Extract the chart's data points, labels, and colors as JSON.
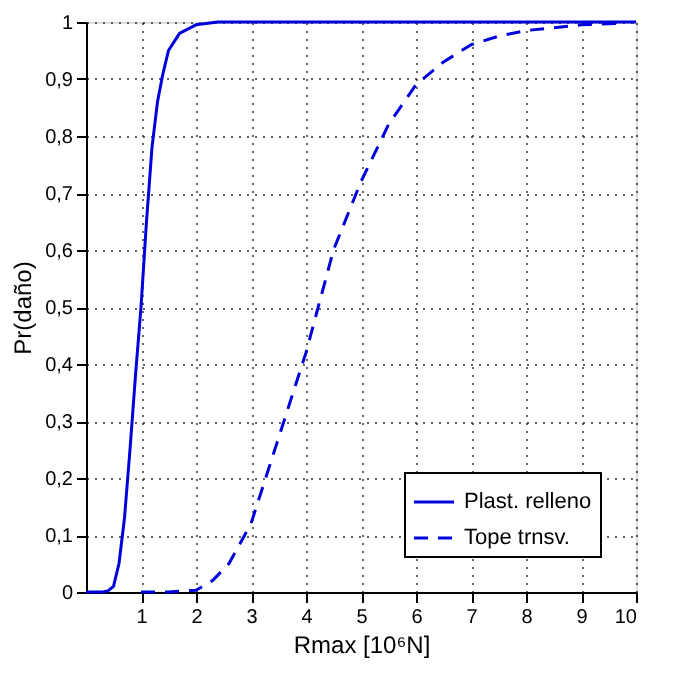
{
  "chart_data": {
    "type": "line",
    "xlabel": "Rmax [10⁶N]",
    "ylabel": "Pr(daño)",
    "x": [
      0,
      0.3,
      0.4,
      0.5,
      0.6,
      0.7,
      0.8,
      0.9,
      1.0,
      1.1,
      1.2,
      1.3,
      1.4,
      1.5,
      1.7,
      2.0,
      2.4,
      10
    ],
    "series": [
      {
        "name": "Plast. relleno",
        "color": "#0000dd",
        "line_style": "solid",
        "values": [
          0,
          0,
          0.002,
          0.01,
          0.05,
          0.13,
          0.25,
          0.38,
          0.5,
          0.65,
          0.78,
          0.86,
          0.91,
          0.95,
          0.98,
          0.995,
          1,
          1
        ]
      },
      {
        "name": "Tope trnsv.",
        "color": "#0000dd",
        "line_style": "dashed",
        "x": [
          1.0,
          1.5,
          2.0,
          2.3,
          2.6,
          3.0,
          3.5,
          4.0,
          4.5,
          5.0,
          5.5,
          6.0,
          6.5,
          7.0,
          7.5,
          8.0,
          9.0,
          9.8
        ],
        "values": [
          0,
          0,
          0.003,
          0.02,
          0.05,
          0.12,
          0.27,
          0.42,
          0.6,
          0.72,
          0.82,
          0.89,
          0.93,
          0.96,
          0.975,
          0.985,
          0.995,
          0.998
        ]
      }
    ],
    "xlim": [
      0,
      10
    ],
    "xticks": [
      1,
      2,
      3,
      4,
      5,
      6,
      7,
      8,
      9,
      10
    ],
    "ylim": [
      0,
      1
    ],
    "yticks": [
      0,
      {
        "value": 0.1,
        "label": "0,1"
      },
      {
        "value": 0.2,
        "label": "0,2"
      },
      {
        "value": 0.3,
        "label": "0,3"
      },
      {
        "value": 0.4,
        "label": "0,4"
      },
      {
        "value": 0.5,
        "label": "0,5"
      },
      {
        "value": 0.6,
        "label": "0,6"
      },
      {
        "value": 0.7,
        "label": "0,7"
      },
      {
        "value": 0.8,
        "label": "0,8"
      },
      {
        "value": 0.9,
        "label": "0,9"
      },
      1
    ],
    "grid": true,
    "legend": "bottom right",
    "marker": "none"
  }
}
